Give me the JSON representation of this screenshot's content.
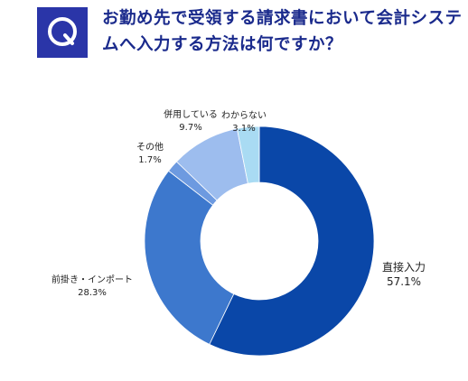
{
  "badge": {
    "letter": "Q"
  },
  "question": "お勤め先で受領する請求書において会計システムへ入力する方法は何ですか？",
  "chart_data": {
    "type": "pie",
    "donut": true,
    "slices": [
      {
        "label": "直接入力",
        "value": 57.1,
        "value_label": "57.1%",
        "color": "#0a47a8"
      },
      {
        "label": "前掛き・インポート",
        "value": 28.3,
        "value_label": "28.3%",
        "color": "#3d78cd"
      },
      {
        "label": "その他",
        "value": 1.7,
        "value_label": "1.7%",
        "color": "#6d9ae0"
      },
      {
        "label": "併用している",
        "value": 9.7,
        "value_label": "9.7%",
        "color": "#9dbdee"
      },
      {
        "label": "わからない",
        "value": 3.1,
        "value_label": "3.1%",
        "color": "#a9dbf3"
      }
    ]
  }
}
